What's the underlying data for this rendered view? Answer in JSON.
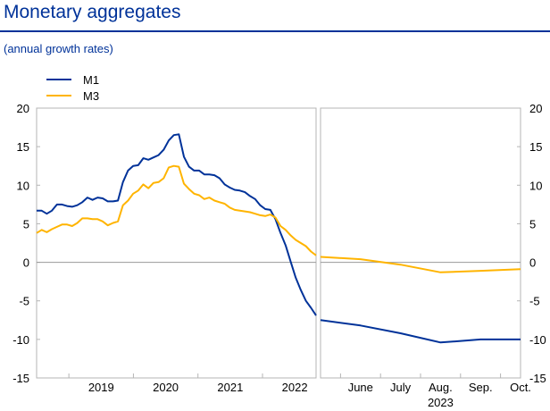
{
  "title": "Monetary aggregates",
  "subtitle": "(annual growth rates)",
  "colors": {
    "M1": "#003299",
    "M3": "#FFB400",
    "text": "#000000",
    "axis": "#B5B5B5",
    "zero": "#9A9A9A",
    "title": "#003299"
  },
  "chart_data": [
    {
      "type": "line",
      "panel": "left",
      "yaxis_side": "left",
      "ylim": [
        -15,
        20
      ],
      "yticks": [
        "20",
        "15",
        "10",
        "5",
        "0",
        "-5",
        "-10",
        "-15"
      ],
      "x_start": 2018.5,
      "x_end": 2022.83,
      "xtick_labels": [
        "2019",
        "2020",
        "2021",
        "2022"
      ],
      "xtick_years": [
        2019,
        2020,
        2021,
        2022
      ],
      "legend": [
        "M1",
        "M3"
      ],
      "series": [
        {
          "name": "M1",
          "values": [
            6.7,
            6.7,
            6.3,
            6.7,
            7.5,
            7.5,
            7.3,
            7.2,
            7.4,
            7.8,
            8.4,
            8.1,
            8.4,
            8.3,
            7.9,
            7.9,
            8.0,
            10.4,
            11.9,
            12.5,
            12.6,
            13.5,
            13.3,
            13.6,
            13.9,
            14.6,
            15.8,
            16.5,
            16.6,
            13.7,
            12.4,
            11.9,
            11.9,
            11.4,
            11.4,
            11.3,
            10.9,
            10.1,
            9.7,
            9.4,
            9.3,
            9.1,
            8.6,
            8.2,
            7.4,
            6.9,
            6.8,
            5.6,
            3.8,
            2.2,
            0.1,
            -2.0,
            -3.6,
            -5.0,
            -5.9,
            -6.9
          ]
        },
        {
          "name": "M3",
          "values": [
            3.8,
            4.2,
            3.9,
            4.3,
            4.6,
            4.9,
            4.9,
            4.7,
            5.1,
            5.7,
            5.7,
            5.6,
            5.6,
            5.3,
            4.8,
            5.1,
            5.3,
            7.4,
            8.0,
            8.9,
            9.3,
            10.1,
            9.6,
            10.3,
            10.4,
            10.9,
            12.3,
            12.5,
            12.4,
            10.2,
            9.5,
            8.9,
            8.7,
            8.2,
            8.4,
            8.0,
            7.8,
            7.6,
            7.1,
            6.8,
            6.7,
            6.6,
            6.5,
            6.3,
            6.1,
            6.0,
            6.2,
            5.8,
            4.7,
            4.2,
            3.5,
            2.9,
            2.5,
            2.1,
            1.4,
            0.9
          ]
        }
      ]
    },
    {
      "type": "line",
      "panel": "right",
      "yaxis_side": "right",
      "ylim": [
        -15,
        20
      ],
      "yticks": [
        "20",
        "15",
        "10",
        "5",
        "0",
        "-5",
        "-10",
        "-15"
      ],
      "categories": [
        "June",
        "July",
        "Aug.",
        "Sep.",
        "Oct."
      ],
      "year_label": "2023",
      "series": [
        {
          "name": "M1",
          "x": [
            5.0,
            6.0,
            7.0,
            8.0,
            9.0,
            10.0
          ],
          "values": [
            -7.5,
            -8.2,
            -9.2,
            -10.4,
            -10.0,
            -10.0
          ]
        },
        {
          "name": "M3",
          "x": [
            5.0,
            6.0,
            7.0,
            8.0,
            9.0,
            10.0
          ],
          "values": [
            0.7,
            0.4,
            -0.3,
            -1.3,
            -1.1,
            -0.9
          ]
        }
      ]
    }
  ]
}
